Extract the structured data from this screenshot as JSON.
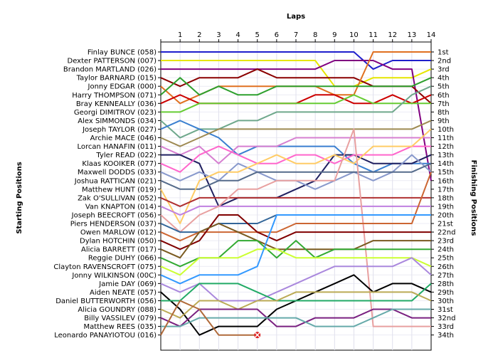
{
  "chart_data": {
    "type": "line",
    "title": "",
    "xlabel": "Laps",
    "ylabel_left": "Starting Positions",
    "ylabel_right": "Finishing Positions",
    "laps": [
      1,
      2,
      3,
      4,
      5,
      6,
      7,
      8,
      9,
      10,
      11,
      12,
      13,
      14
    ],
    "drivers": [
      "Finlay BUNCE (058)",
      "Dexter PATTERSON (007)",
      "Brandon MARTLAND (026)",
      "Taylor BARNARD (015)",
      "Jonny EDGAR (000)",
      "Harry THOMPSON (071)",
      "Bray KENNEALLY (036)",
      "Georgi DIMITROV (023)",
      "Alex SIMMONDS (034)",
      "Joseph TAYLOR (027)",
      "Archie MACE (046)",
      "Lorcan HANAFIN (011)",
      "Tyler READ (022)",
      "Klaas KOOIKER (077)",
      "Maxwell DODDS (033)",
      "Joshua RATTICAN (021)",
      "Matthew HUNT (019)",
      "Zak O'SULLIVAN (052)",
      "Van KNAPTON (014)",
      "Joseph BEECROFT (056)",
      "Piers HENDERSON (037)",
      "Owen MARLOW (012)",
      "Dylan HOTCHIN (050)",
      "Alicia BARRETT (017)",
      "Reggie DUHY (066)",
      "Clayton RAVENSCROFT (075)",
      "Jonny WILKINSON (00C)",
      "Jamie DAY (069)",
      "Aiden NEATE (057)",
      "Daniel BUTTERWORTH (056)",
      "Alicia GOUNDRY (088)",
      "Billy VASSILEV (079)",
      "Matthew REES (035)",
      "Leonardo PANAYIOTOU (016)"
    ],
    "finishing_positions": [
      "1st",
      "2nd",
      "3rd",
      "4th",
      "5th",
      "6th",
      "7th",
      "8th",
      "9th",
      "10th",
      "11th",
      "12th",
      "13th",
      "14th",
      "15th",
      "16th",
      "17th",
      "18th",
      "19th",
      "20th",
      "21st",
      "22nd",
      "23rd",
      "24th",
      "25th",
      "26th",
      "27th",
      "28th",
      "29th",
      "30th",
      "31st",
      "32nd",
      "33rd",
      "34th"
    ],
    "series": [
      {
        "color": "#1f1fcc",
        "start": 1,
        "positions": [
          1,
          1,
          1,
          1,
          1,
          1,
          1,
          1,
          1,
          1,
          3,
          2,
          2,
          2
        ]
      },
      {
        "color": "#e6e600",
        "start": 2,
        "positions": [
          2,
          2,
          2,
          2,
          2,
          2,
          2,
          2,
          5,
          5,
          4,
          4,
          4,
          3
        ]
      },
      {
        "color": "#800080",
        "start": 3,
        "positions": [
          3,
          3,
          3,
          3,
          3,
          3,
          3,
          3,
          2,
          2,
          2,
          3,
          3,
          16
        ]
      },
      {
        "color": "#8b0000",
        "start": 4,
        "positions": [
          5,
          4,
          4,
          4,
          3,
          4,
          4,
          4,
          4,
          4,
          5,
          5,
          5,
          7
        ]
      },
      {
        "color": "#e07020",
        "start": 5,
        "positions": [
          7,
          6,
          5,
          5,
          5,
          5,
          5,
          5,
          6,
          6,
          1,
          1,
          1,
          1
        ]
      },
      {
        "color": "#2ea02e",
        "start": 6,
        "positions": [
          4,
          6,
          5,
          6,
          6,
          5,
          5,
          5,
          5,
          5,
          5,
          5,
          5,
          4
        ]
      },
      {
        "color": "#cc0000",
        "start": 7,
        "positions": [
          6,
          7,
          7,
          7,
          7,
          7,
          7,
          6,
          6,
          7,
          7,
          6,
          7,
          6
        ]
      },
      {
        "color": "#66cc33",
        "start": 8,
        "positions": [
          8,
          7,
          7,
          7,
          7,
          7,
          7,
          7,
          7,
          6,
          7,
          7,
          7,
          7
        ]
      },
      {
        "color": "#6fa88c",
        "start": 9,
        "positions": [
          11,
          10,
          10,
          9,
          9,
          8,
          8,
          8,
          8,
          8,
          8,
          8,
          6,
          5
        ]
      },
      {
        "color": "#3a7fd0",
        "start": 10,
        "positions": [
          9,
          10,
          11,
          13,
          12,
          12,
          12,
          12,
          12,
          14,
          15,
          14,
          14,
          14
        ]
      },
      {
        "color": "#9e8a52",
        "start": 11,
        "positions": [
          12,
          11,
          10,
          10,
          10,
          10,
          10,
          10,
          10,
          10,
          10,
          10,
          10,
          9
        ]
      },
      {
        "color": "#d67fd0",
        "start": 12,
        "positions": [
          13,
          12,
          14,
          12,
          12,
          12,
          11,
          11,
          11,
          11,
          11,
          11,
          11,
          11
        ]
      },
      {
        "color": "#202060",
        "start": 13,
        "positions": [
          13,
          14,
          19,
          18,
          18,
          18,
          17,
          16,
          13,
          13,
          14,
          14,
          14,
          13
        ]
      },
      {
        "color": "#ff66cc",
        "start": 14,
        "positions": [
          15,
          13,
          12,
          13,
          14,
          14,
          13,
          13,
          14,
          13,
          13,
          13,
          12,
          12
        ]
      },
      {
        "color": "#8899cc",
        "start": 15,
        "positions": [
          16,
          15,
          16,
          14,
          15,
          16,
          16,
          17,
          16,
          15,
          16,
          15,
          13,
          15
        ]
      },
      {
        "color": "#556b8b",
        "start": 16,
        "positions": [
          17,
          17,
          16,
          16,
          15,
          15,
          15,
          15,
          15,
          15,
          15,
          15,
          15,
          14
        ]
      },
      {
        "color": "#ffcc66",
        "start": 17,
        "positions": [
          21,
          16,
          15,
          15,
          14,
          13,
          14,
          14,
          13,
          14,
          12,
          12,
          12,
          10
        ]
      },
      {
        "color": "#b03030",
        "start": 18,
        "positions": [
          19,
          18,
          18,
          18,
          18,
          18,
          18,
          18,
          18,
          18,
          18,
          18,
          18,
          18
        ]
      },
      {
        "color": "#c080e0",
        "start": 19,
        "positions": [
          20,
          19,
          19,
          19,
          19,
          19,
          19,
          19,
          19,
          19,
          19,
          19,
          19,
          19
        ]
      },
      {
        "color": "#e8a0a0",
        "start": 20,
        "positions": [
          22,
          20,
          19,
          17,
          17,
          16,
          16,
          16,
          16,
          10,
          33,
          33,
          33,
          33
        ]
      },
      {
        "color": "#336699",
        "start": 21,
        "positions": [
          22,
          22,
          21,
          21,
          21,
          20,
          20,
          20,
          20,
          20,
          20,
          20,
          20,
          20
        ]
      },
      {
        "color": "#cc6633",
        "start": 22,
        "positions": [
          23,
          22,
          22,
          22,
          22,
          22,
          21,
          21,
          21,
          21,
          21,
          21,
          21,
          15
        ]
      },
      {
        "color": "#800000",
        "start": 23,
        "positions": [
          24,
          23,
          20,
          20,
          22,
          23,
          22,
          22,
          22,
          22,
          22,
          22,
          22,
          22
        ]
      },
      {
        "color": "#7a5a20",
        "start": 24,
        "positions": [
          25,
          22,
          21,
          22,
          23,
          24,
          24,
          24,
          24,
          24,
          23,
          23,
          23,
          23
        ]
      },
      {
        "color": "#33aa33",
        "start": 25,
        "positions": [
          26,
          25,
          25,
          23,
          23,
          25,
          23,
          25,
          24,
          24,
          24,
          24,
          24,
          24
        ]
      },
      {
        "color": "#ccff33",
        "start": 26,
        "positions": [
          27,
          25,
          25,
          25,
          24,
          24,
          25,
          25,
          25,
          25,
          25,
          25,
          25,
          26
        ]
      },
      {
        "color": "#3399ff",
        "start": 27,
        "positions": [
          28,
          27,
          27,
          27,
          26,
          20,
          20,
          20,
          20,
          20,
          20,
          20,
          20,
          20
        ]
      },
      {
        "color": "#aa88dd",
        "start": 28,
        "positions": [
          29,
          28,
          30,
          30,
          30,
          29,
          28,
          27,
          26,
          26,
          26,
          26,
          25,
          27
        ]
      },
      {
        "color": "#000000",
        "start": 29,
        "positions": [
          31,
          34,
          33,
          33,
          33,
          31,
          30,
          29,
          28,
          27,
          29,
          28,
          28,
          29
        ]
      },
      {
        "color": "#22aa66",
        "start": 30,
        "positions": [
          30,
          28,
          28,
          28,
          29,
          30,
          30,
          30,
          30,
          30,
          30,
          30,
          30,
          28
        ]
      },
      {
        "color": "#bbaa55",
        "start": 31,
        "positions": [
          32,
          30,
          30,
          31,
          30,
          30,
          29,
          29,
          29,
          29,
          29,
          29,
          29,
          30
        ]
      },
      {
        "color": "#7a2080",
        "start": 32,
        "positions": [
          33,
          31,
          31,
          31,
          31,
          33,
          33,
          32,
          32,
          32,
          31,
          31,
          32,
          32
        ]
      },
      {
        "color": "#66aaaa",
        "start": 33,
        "positions": [
          33,
          32,
          32,
          32,
          32,
          32,
          32,
          33,
          33,
          33,
          32,
          31,
          31,
          31
        ]
      },
      {
        "color": "#b06a3a",
        "start": 34,
        "positions": [
          30,
          31,
          34,
          34,
          34
        ]
      }
    ],
    "retired": {
      "series_index": 33,
      "lap": 5
    }
  }
}
